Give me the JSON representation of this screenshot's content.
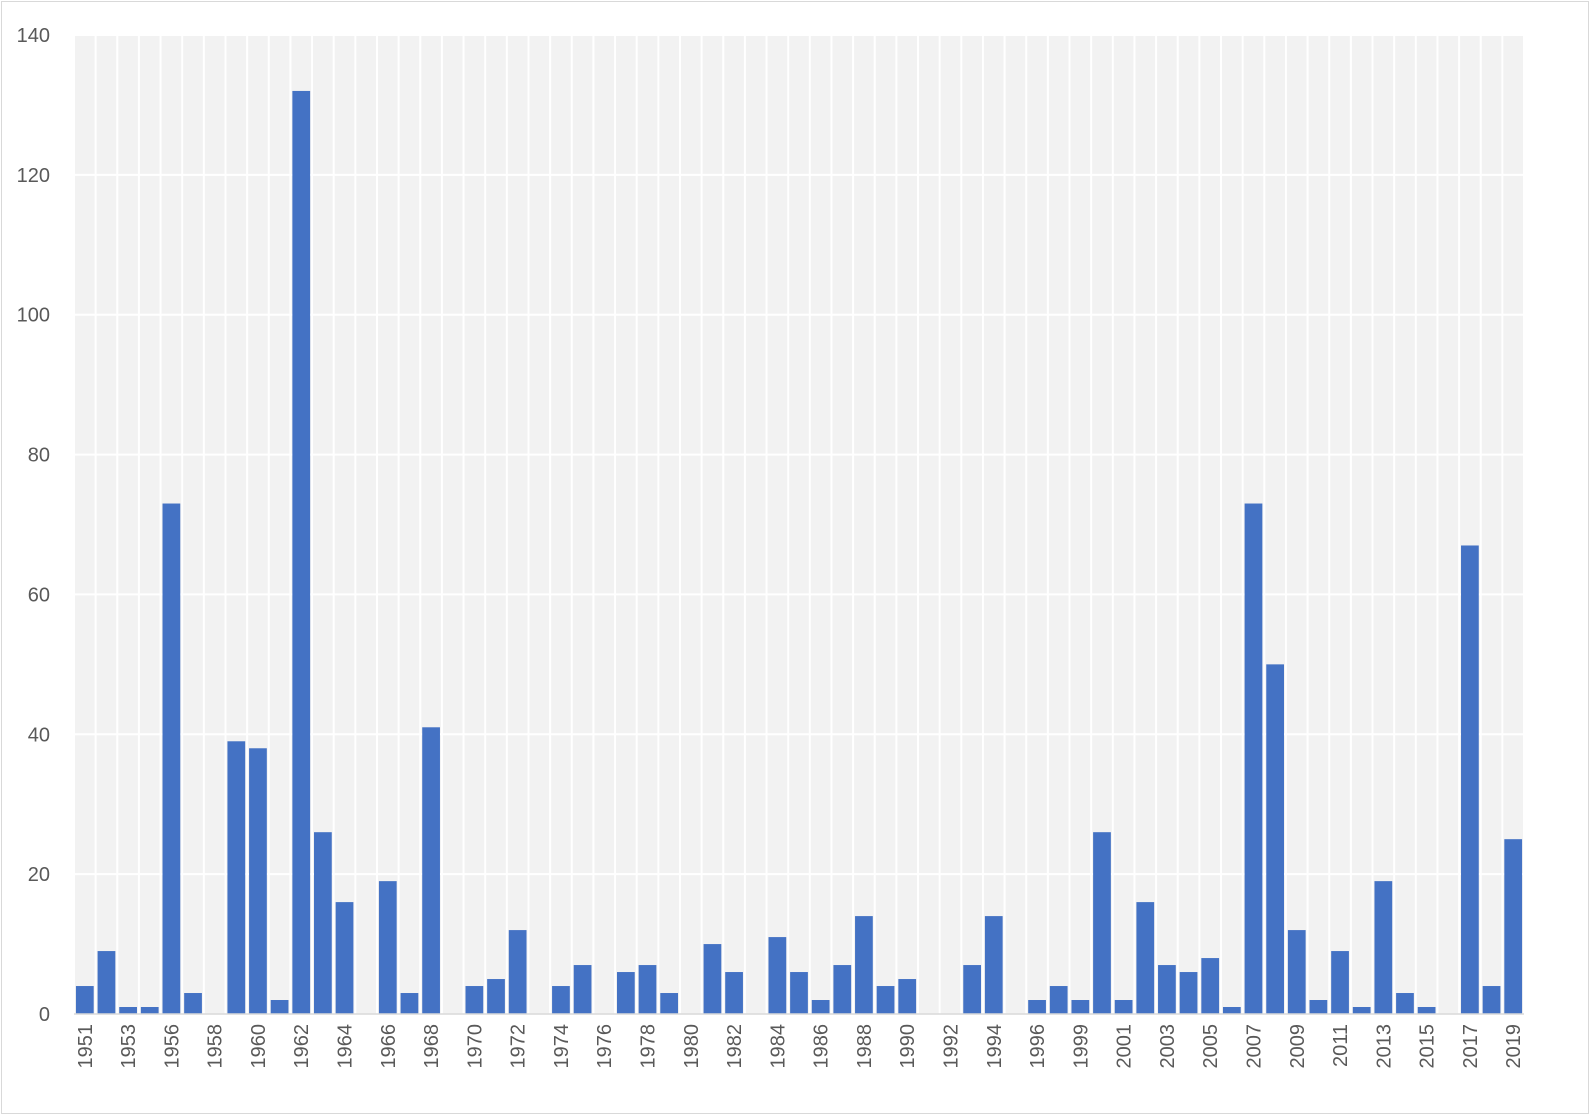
{
  "chart_data": {
    "type": "bar",
    "title": "",
    "xlabel": "",
    "ylabel": "",
    "ylim": [
      0,
      140
    ],
    "yticks": [
      "0",
      "20",
      "40",
      "60",
      "80",
      "100",
      "120",
      "140"
    ],
    "grid": true,
    "bar_color": "#4472c4",
    "plot_background": "#f2f2f2",
    "gridline_color": "#ffffff",
    "categories": [
      "1951",
      "1952",
      "1953",
      "1954",
      "1956",
      "1957",
      "1958",
      "1959",
      "1960",
      "1961",
      "1962",
      "1963",
      "1964",
      "1965",
      "1966",
      "1967",
      "1968",
      "1969",
      "1970",
      "1971",
      "1972",
      "1973",
      "1974",
      "1975",
      "1976",
      "1977",
      "1978",
      "1979",
      "1980",
      "1981",
      "1982",
      "1983",
      "1984",
      "1985",
      "1986",
      "1987",
      "1988",
      "1989",
      "1990",
      "1991",
      "1992",
      "1993",
      "1994",
      "1995",
      "1996",
      "1998",
      "1999",
      "2000",
      "2001",
      "2002",
      "2003",
      "2004",
      "2005",
      "2006",
      "2007",
      "2008",
      "2009",
      "2010",
      "2011",
      "2012",
      "2013",
      "2014",
      "2015",
      "2016",
      "2017",
      "2018",
      "2019"
    ],
    "visible_labels": [
      "1951",
      "1953",
      "1956",
      "1958",
      "1960",
      "1962",
      "1964",
      "1966",
      "1968",
      "1970",
      "1972",
      "1974",
      "1976",
      "1978",
      "1980",
      "1982",
      "1984",
      "1986",
      "1988",
      "1990",
      "1992",
      "1994",
      "1996",
      "1999",
      "2001",
      "2003",
      "2005",
      "2007",
      "2009",
      "2011",
      "2013",
      "2015",
      "2017",
      "2019"
    ],
    "values": [
      4,
      9,
      1,
      1,
      73,
      3,
      0,
      39,
      38,
      2,
      132,
      26,
      16,
      0,
      19,
      3,
      41,
      0,
      4,
      5,
      12,
      0,
      4,
      7,
      0,
      6,
      7,
      3,
      0,
      10,
      6,
      0,
      11,
      6,
      2,
      7,
      14,
      4,
      5,
      0,
      0,
      7,
      14,
      0,
      2,
      4,
      2,
      26,
      2,
      16,
      7,
      6,
      8,
      1,
      73,
      50,
      12,
      2,
      9,
      1,
      19,
      3,
      1,
      0,
      67,
      4,
      25
    ]
  }
}
